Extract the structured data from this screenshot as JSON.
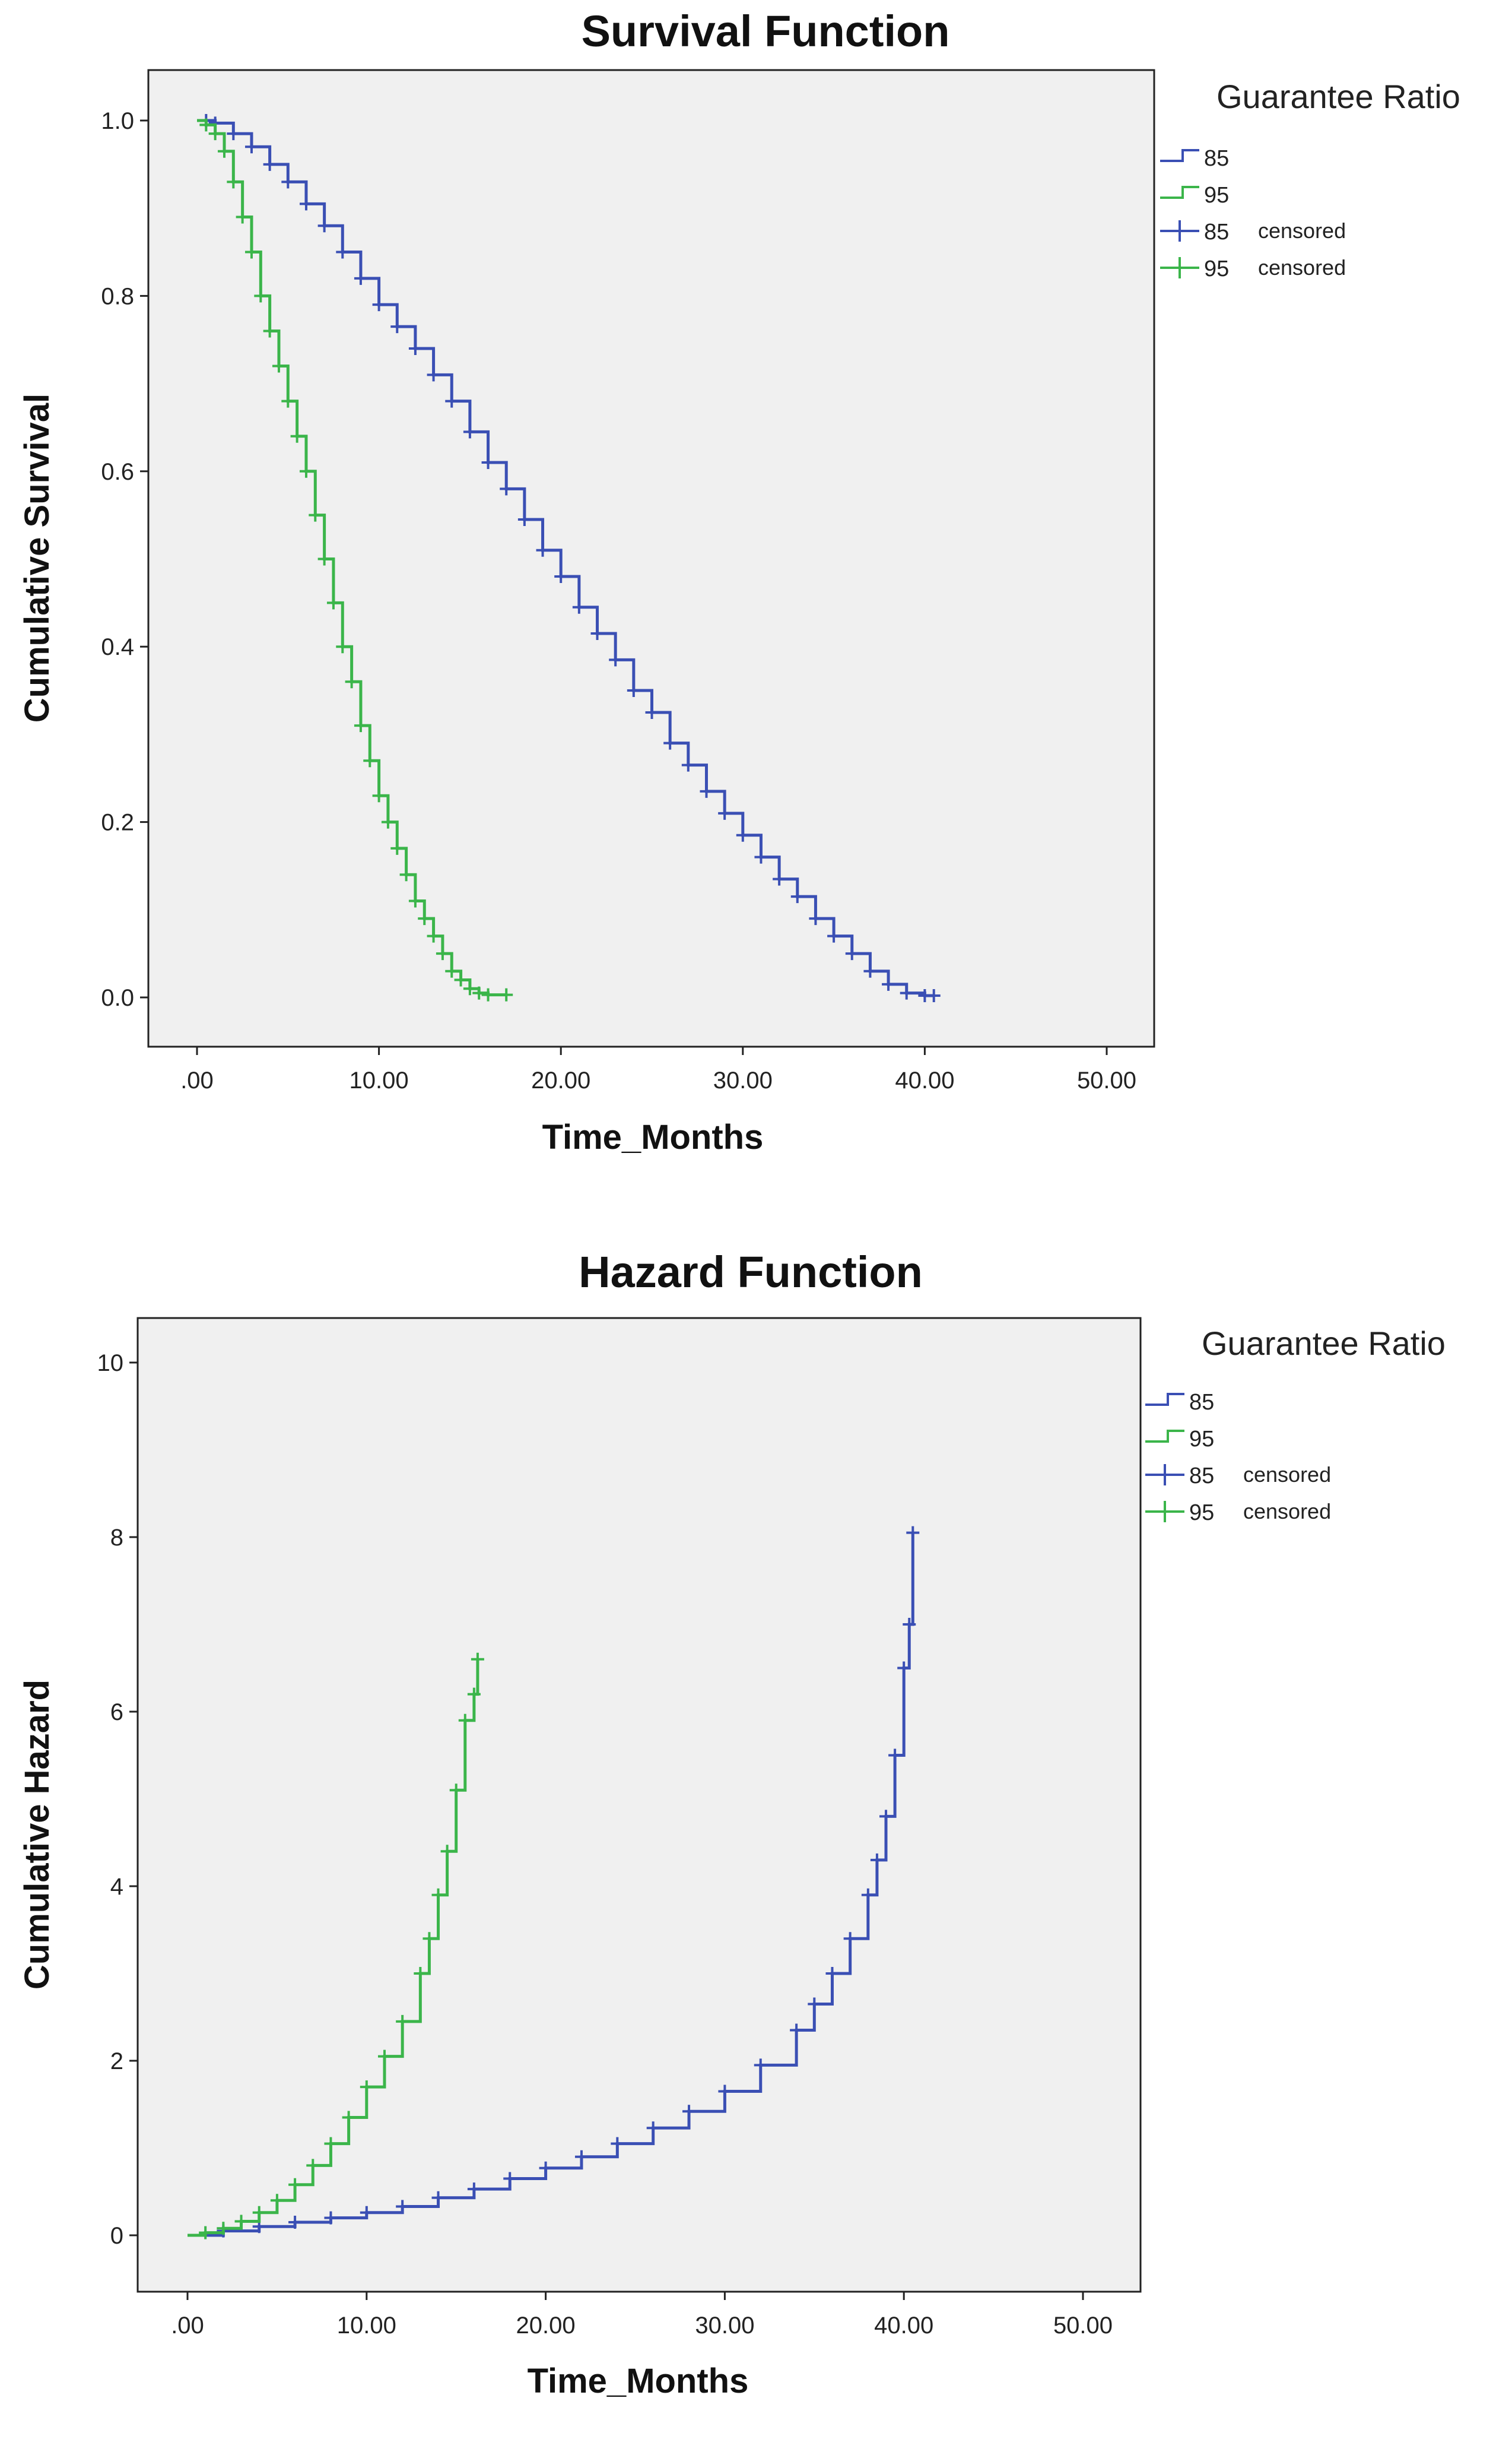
{
  "chart_data": [
    {
      "type": "line",
      "title": "Survival Function",
      "xlabel": "Time_Months",
      "ylabel": "Cumulative Survival",
      "xlim": [
        0,
        50
      ],
      "ylim": [
        0,
        1
      ],
      "x_ticks": [
        ".00",
        "10.00",
        "20.00",
        "30.00",
        "40.00",
        "50.00"
      ],
      "y_ticks": [
        "0.0",
        "0.2",
        "0.4",
        "0.6",
        "0.8",
        "1.0"
      ],
      "grid": false,
      "legend": {
        "title": "Guarantee Ratio",
        "placement": "right",
        "entries": [
          {
            "label": "85",
            "suffix": "",
            "style": "step",
            "color": "#3a4fb4"
          },
          {
            "label": "95",
            "suffix": "",
            "style": "step",
            "color": "#3bb54a"
          },
          {
            "label": "85",
            "suffix": "censored",
            "style": "censored",
            "color": "#3a4fb4"
          },
          {
            "label": "95",
            "suffix": "censored",
            "style": "censored",
            "color": "#3bb54a"
          }
        ]
      },
      "series": [
        {
          "name": "85",
          "color": "#3a4fb4",
          "x": [
            0,
            0.5,
            1,
            2,
            3,
            4,
            5,
            6,
            7,
            8,
            9,
            10,
            11,
            12,
            13,
            14,
            15,
            16,
            17,
            18,
            19,
            20,
            21,
            22,
            23,
            24,
            25,
            26,
            27,
            28,
            29,
            30,
            31,
            32,
            33,
            34,
            35,
            36,
            37,
            38,
            39,
            40,
            40.5
          ],
          "y": [
            1.0,
            1.0,
            0.997,
            0.985,
            0.97,
            0.95,
            0.93,
            0.905,
            0.88,
            0.85,
            0.82,
            0.79,
            0.765,
            0.74,
            0.71,
            0.68,
            0.645,
            0.61,
            0.58,
            0.545,
            0.51,
            0.48,
            0.445,
            0.415,
            0.385,
            0.35,
            0.325,
            0.29,
            0.265,
            0.235,
            0.21,
            0.185,
            0.16,
            0.135,
            0.115,
            0.09,
            0.07,
            0.05,
            0.03,
            0.015,
            0.005,
            0.002,
            0.002
          ]
        },
        {
          "name": "95",
          "color": "#3bb54a",
          "x": [
            0,
            0.5,
            1,
            1.5,
            2,
            2.5,
            3,
            3.5,
            4,
            4.5,
            5,
            5.5,
            6,
            6.5,
            7,
            7.5,
            8,
            8.5,
            9,
            9.5,
            10,
            10.5,
            11,
            11.5,
            12,
            12.5,
            13,
            13.5,
            14,
            14.5,
            15,
            15.5,
            16,
            17
          ],
          "y": [
            1.0,
            0.995,
            0.985,
            0.965,
            0.93,
            0.89,
            0.85,
            0.8,
            0.76,
            0.72,
            0.68,
            0.64,
            0.6,
            0.55,
            0.5,
            0.45,
            0.4,
            0.36,
            0.31,
            0.27,
            0.23,
            0.2,
            0.17,
            0.14,
            0.11,
            0.09,
            0.07,
            0.05,
            0.03,
            0.02,
            0.01,
            0.005,
            0.003,
            0.003
          ]
        }
      ]
    },
    {
      "type": "line",
      "title": "Hazard Function",
      "xlabel": "Time_Months",
      "ylabel": "Cumulative Hazard",
      "xlim": [
        0,
        50
      ],
      "ylim": [
        0,
        10
      ],
      "x_ticks": [
        ".00",
        "10.00",
        "20.00",
        "30.00",
        "40.00",
        "50.00"
      ],
      "y_ticks": [
        "0",
        "2",
        "4",
        "6",
        "8",
        "10"
      ],
      "grid": false,
      "legend": {
        "title": "Guarantee Ratio",
        "placement": "right",
        "entries": [
          {
            "label": "85",
            "suffix": "",
            "style": "step",
            "color": "#3a4fb4"
          },
          {
            "label": "95",
            "suffix": "",
            "style": "step",
            "color": "#3bb54a"
          },
          {
            "label": "85",
            "suffix": "censored",
            "style": "censored",
            "color": "#3a4fb4"
          },
          {
            "label": "95",
            "suffix": "censored",
            "style": "censored",
            "color": "#3bb54a"
          }
        ]
      },
      "series": [
        {
          "name": "85",
          "color": "#3a4fb4",
          "x": [
            0,
            2,
            4,
            6,
            8,
            10,
            12,
            14,
            16,
            18,
            20,
            22,
            24,
            26,
            28,
            30,
            32,
            34,
            35,
            36,
            37,
            38,
            38.5,
            39,
            39.5,
            40,
            40.3,
            40.5
          ],
          "y": [
            0,
            0.05,
            0.1,
            0.15,
            0.2,
            0.26,
            0.33,
            0.43,
            0.53,
            0.65,
            0.77,
            0.9,
            1.05,
            1.23,
            1.42,
            1.65,
            1.95,
            2.35,
            2.65,
            3.0,
            3.4,
            3.9,
            4.3,
            4.8,
            5.5,
            6.5,
            7.0,
            8.05
          ]
        },
        {
          "name": "95",
          "color": "#3bb54a",
          "x": [
            0,
            1,
            2,
            3,
            4,
            5,
            6,
            7,
            8,
            9,
            10,
            11,
            12,
            13,
            13.5,
            14,
            14.5,
            15,
            15.5,
            16,
            16.2
          ],
          "y": [
            0,
            0.03,
            0.08,
            0.16,
            0.26,
            0.4,
            0.58,
            0.8,
            1.05,
            1.35,
            1.7,
            2.05,
            2.45,
            3.0,
            3.4,
            3.9,
            4.4,
            5.1,
            5.9,
            6.2,
            6.6
          ]
        }
      ]
    }
  ]
}
